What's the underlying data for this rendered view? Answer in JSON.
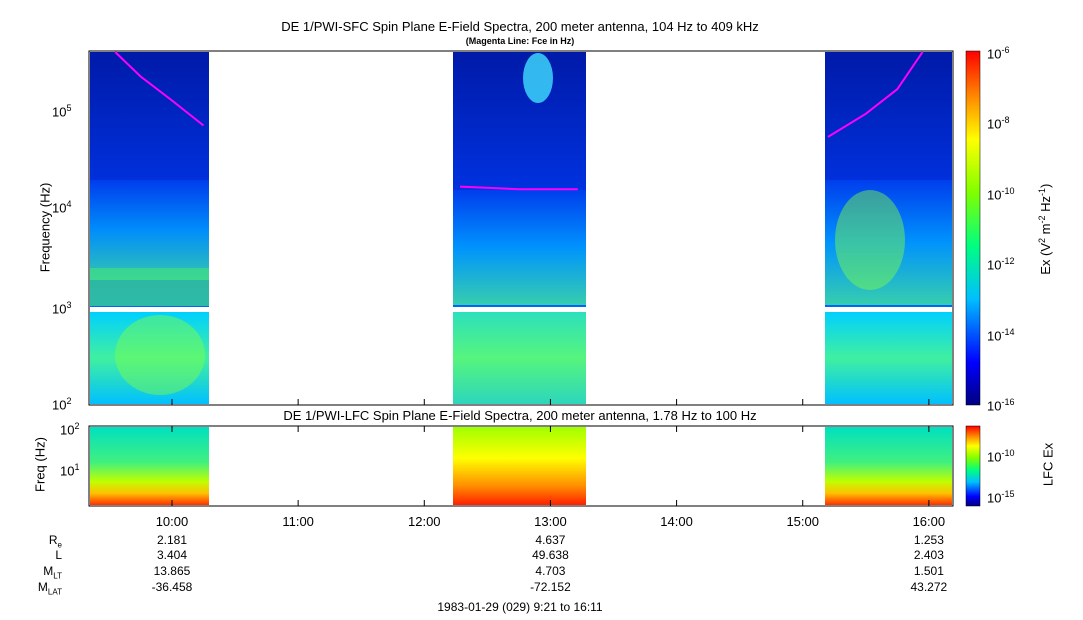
{
  "chart_data": [
    {
      "type": "heatmap",
      "title": "DE 1/PWI-SFC  Spin Plane E-Field Spectra, 200 meter antenna, 104 Hz to 409 kHz",
      "subtitle": "(Magenta Line: Fce in Hz)",
      "ylabel": "Frequency (Hz)",
      "y_scale": "log",
      "ylim": [
        100,
        409000
      ],
      "y_ticks": [
        "10^2",
        "10^3",
        "10^4",
        "10^5"
      ],
      "colorbar": {
        "label": "Ex (V^2 m^-2 Hz^-1)",
        "scale": "log",
        "range": [
          1e-16,
          1e-06
        ],
        "ticks": [
          "10^-6",
          "10^-8",
          "10^-10",
          "10^-12",
          "10^-14",
          "10^-16"
        ]
      },
      "data_intervals_utc": [
        [
          "09:21",
          "10:17"
        ],
        [
          "12:13",
          "13:15"
        ],
        [
          "15:12",
          "16:11"
        ]
      ],
      "series": [
        {
          "name": "Fce",
          "color": "#ff00ff",
          "segments": [
            {
              "x": [
                "09:33",
                "09:45",
                "10:00",
                "10:15"
              ],
              "y": [
                409000,
                230000,
                130000,
                72000
              ]
            },
            {
              "x": [
                "12:17",
                "12:45",
                "13:13"
              ],
              "y": [
                17000,
                16000,
                16000
              ]
            },
            {
              "x": [
                "15:12",
                "15:30",
                "15:45",
                "15:57"
              ],
              "y": [
                55000,
                95000,
                170000,
                409000
              ]
            }
          ]
        }
      ]
    },
    {
      "type": "heatmap",
      "title": "DE 1/PWI-LFC  Spin Plane E-Field Spectra, 200 meter antenna, 1.78 Hz to 100 Hz",
      "ylabel": "Freq (Hz)",
      "y_scale": "log",
      "ylim": [
        1.78,
        100
      ],
      "y_ticks": [
        "10^1",
        "10^2"
      ],
      "colorbar": {
        "label": "LFC Ex",
        "scale": "log",
        "ticks": [
          "10^-10",
          "10^-15"
        ]
      },
      "data_intervals_utc": [
        [
          "09:21",
          "10:17"
        ],
        [
          "12:13",
          "13:15"
        ],
        [
          "15:12",
          "16:11"
        ]
      ]
    }
  ],
  "x_ticks": [
    "10:00",
    "11:00",
    "12:00",
    "13:00",
    "14:00",
    "15:00",
    "16:00"
  ],
  "ephemeris": {
    "labels": [
      "R",
      "L",
      "M",
      "M"
    ],
    "label_subs": [
      "e",
      "",
      "LT",
      "LAT"
    ],
    "columns": [
      {
        "time": "10:00",
        "values": [
          "2.181",
          "3.404",
          "13.865",
          "-36.458"
        ]
      },
      {
        "time": "13:00",
        "values": [
          "4.637",
          "49.638",
          "4.703",
          "-72.152"
        ]
      },
      {
        "time": "16:00",
        "values": [
          "1.253",
          "2.403",
          "1.501",
          "43.272"
        ]
      }
    ]
  },
  "footer": "1983-01-29 (029) 9:21 to 16:11"
}
